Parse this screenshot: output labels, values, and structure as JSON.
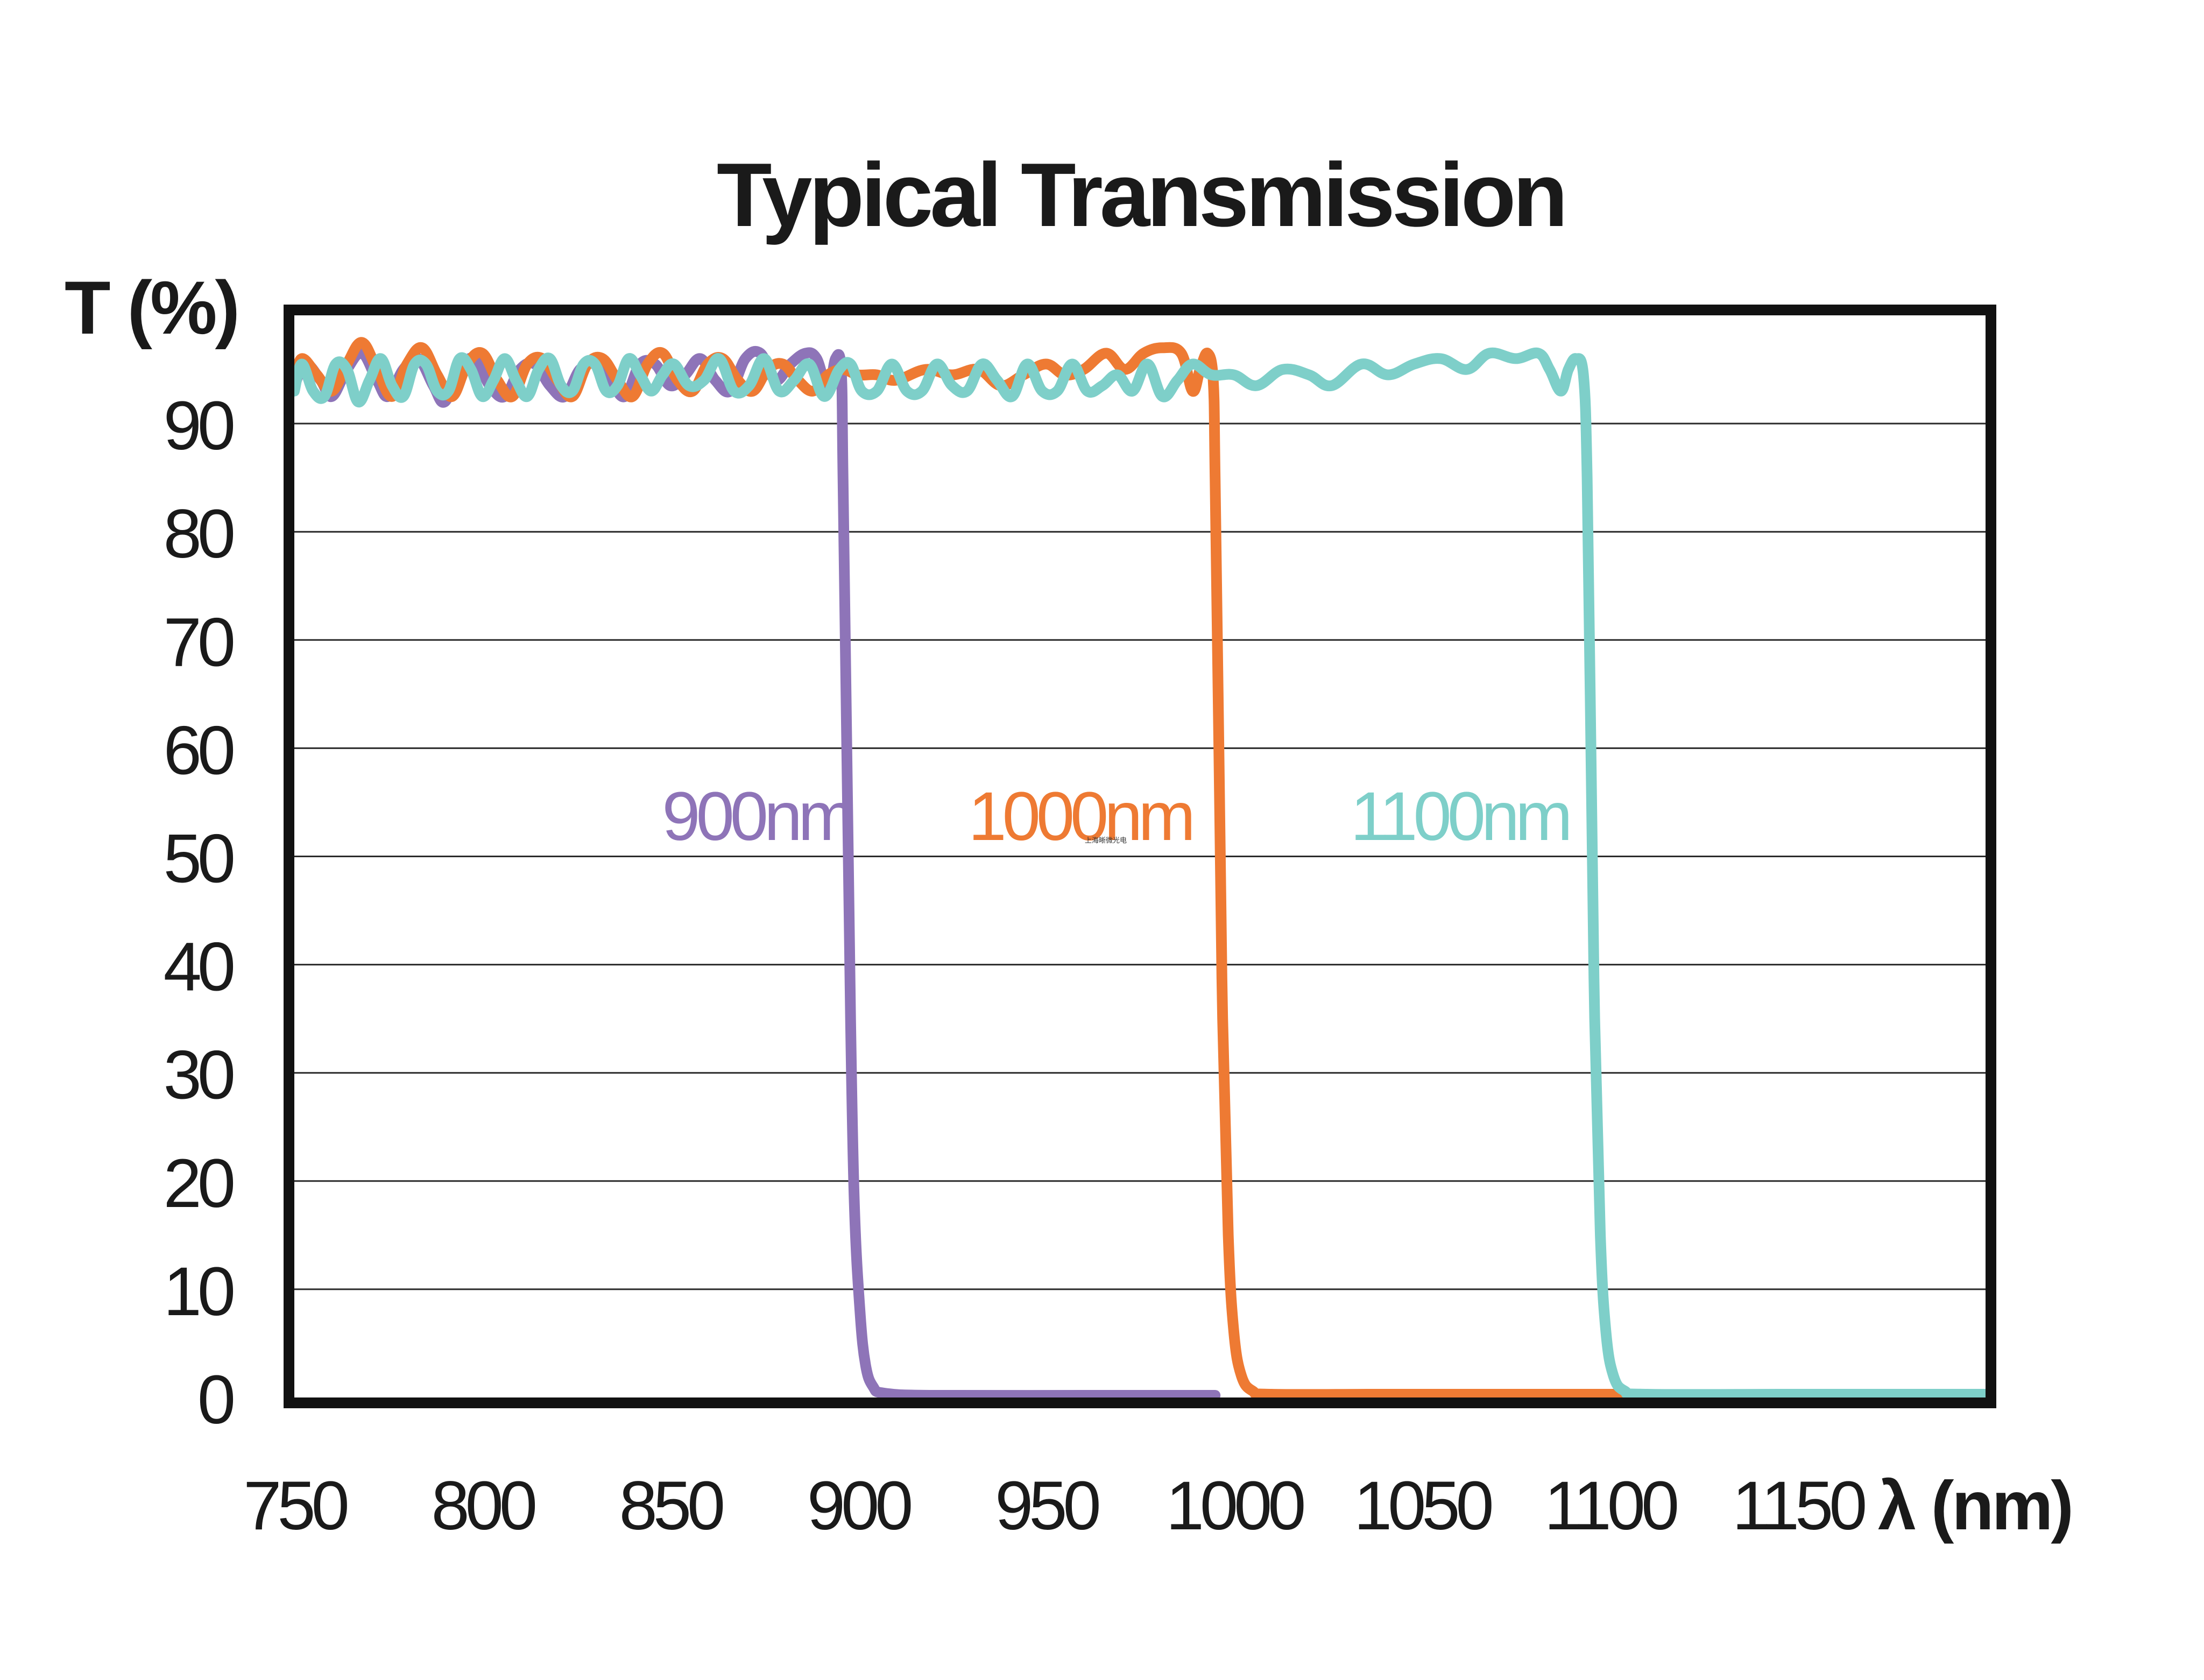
{
  "chart_data": {
    "type": "line",
    "title": "Typical Transmission",
    "ylabel": "T (%)",
    "xlabel": "λ (nm)",
    "xlim": [
      750,
      1200
    ],
    "ylim": [
      0,
      100
    ],
    "x_ticks": [
      750,
      800,
      850,
      900,
      950,
      1000,
      1050,
      1100,
      1150
    ],
    "y_ticks": [
      0,
      10,
      20,
      30,
      40,
      50,
      60,
      70,
      80,
      90
    ],
    "grid": "horizontal",
    "legend": "inline labels near each cut-off edge",
    "series": [
      {
        "name": "900nm",
        "label": "900nm",
        "color": "#8E74B8",
        "label_anchor": {
          "x": 873,
          "y": 54
        },
        "points": [
          [
            750,
            93.5
          ],
          [
            753,
            95.5
          ],
          [
            757,
            94
          ],
          [
            760,
            92.5
          ],
          [
            764,
            95
          ],
          [
            768,
            96.5
          ],
          [
            772,
            94
          ],
          [
            775,
            92.5
          ],
          [
            779,
            95
          ],
          [
            783,
            96
          ],
          [
            787,
            93.5
          ],
          [
            790,
            92
          ],
          [
            794,
            95
          ],
          [
            798,
            96
          ],
          [
            802,
            93.5
          ],
          [
            806,
            92.5
          ],
          [
            810,
            95
          ],
          [
            814,
            95.5
          ],
          [
            818,
            93.5
          ],
          [
            822,
            92.5
          ],
          [
            826,
            95
          ],
          [
            830,
            95.5
          ],
          [
            834,
            94
          ],
          [
            838,
            92.5
          ],
          [
            842,
            95.5
          ],
          [
            846,
            95.5
          ],
          [
            850,
            93.5
          ],
          [
            854,
            94.5
          ],
          [
            858,
            96
          ],
          [
            862,
            94
          ],
          [
            866,
            93
          ],
          [
            870,
            96
          ],
          [
            874,
            96.5
          ],
          [
            878,
            94
          ],
          [
            882,
            95.5
          ],
          [
            886,
            96.5
          ],
          [
            889,
            96
          ],
          [
            892,
            93
          ],
          [
            894,
            96
          ],
          [
            895.5,
            95
          ],
          [
            896,
            85
          ],
          [
            897,
            60
          ],
          [
            898,
            35
          ],
          [
            899,
            18
          ],
          [
            900.5,
            8
          ],
          [
            902,
            3
          ],
          [
            904,
            1
          ],
          [
            907,
            0.4
          ],
          [
            920,
            0.2
          ],
          [
            960,
            0.2
          ],
          [
            995,
            0.2
          ]
        ]
      },
      {
        "name": "1000nm",
        "label": "1000nm",
        "color": "#EE7A33",
        "label_anchor": {
          "x": 959,
          "y": 54
        },
        "points": [
          [
            750,
            94
          ],
          [
            752,
            96
          ],
          [
            756,
            94.5
          ],
          [
            760,
            93
          ],
          [
            764,
            95.5
          ],
          [
            768,
            97.5
          ],
          [
            772,
            95
          ],
          [
            776,
            92.5
          ],
          [
            780,
            95.5
          ],
          [
            784,
            97
          ],
          [
            788,
            94.5
          ],
          [
            792,
            92.5
          ],
          [
            796,
            95.5
          ],
          [
            800,
            96.5
          ],
          [
            804,
            94
          ],
          [
            808,
            92.5
          ],
          [
            812,
            95.5
          ],
          [
            816,
            96
          ],
          [
            820,
            94
          ],
          [
            824,
            92.5
          ],
          [
            828,
            95.5
          ],
          [
            832,
            96
          ],
          [
            836,
            94
          ],
          [
            840,
            92.5
          ],
          [
            844,
            95.5
          ],
          [
            848,
            96.5
          ],
          [
            852,
            94
          ],
          [
            856,
            93
          ],
          [
            860,
            95.5
          ],
          [
            864,
            96
          ],
          [
            868,
            94
          ],
          [
            872,
            93
          ],
          [
            876,
            95
          ],
          [
            880,
            95.5
          ],
          [
            884,
            94
          ],
          [
            888,
            93
          ],
          [
            892,
            94.5
          ],
          [
            896,
            95
          ],
          [
            900,
            94.5
          ],
          [
            905,
            94.5
          ],
          [
            910,
            94
          ],
          [
            918,
            95
          ],
          [
            925,
            94.5
          ],
          [
            932,
            95
          ],
          [
            938,
            93.5
          ],
          [
            944,
            94.5
          ],
          [
            950,
            95.5
          ],
          [
            955,
            94.5
          ],
          [
            960,
            95
          ],
          [
            966,
            96.5
          ],
          [
            971,
            95
          ],
          [
            976,
            96.5
          ],
          [
            981,
            97
          ],
          [
            986,
            96.5
          ],
          [
            989,
            93
          ],
          [
            991,
            95
          ],
          [
            993,
            96.5
          ],
          [
            994.5,
            94
          ],
          [
            995,
            85
          ],
          [
            996,
            60
          ],
          [
            997,
            35
          ],
          [
            998.5,
            15
          ],
          [
            1000,
            6
          ],
          [
            1002,
            2
          ],
          [
            1005,
            0.6
          ],
          [
            1010,
            0.3
          ],
          [
            1040,
            0.3
          ],
          [
            1080,
            0.3
          ],
          [
            1103,
            0.3
          ]
        ]
      },
      {
        "name": "1100nm",
        "label": "1100nm",
        "color": "#7ECFC9",
        "label_anchor": {
          "x": 1060,
          "y": 54
        },
        "points": [
          [
            750,
            93
          ],
          [
            752,
            95.5
          ],
          [
            755,
            93
          ],
          [
            758,
            92.5
          ],
          [
            761,
            95.5
          ],
          [
            764,
            95
          ],
          [
            767,
            92
          ],
          [
            770,
            94
          ],
          [
            773,
            96
          ],
          [
            776,
            93.5
          ],
          [
            779,
            92.5
          ],
          [
            782,
            95.5
          ],
          [
            785,
            95.5
          ],
          [
            788,
            93
          ],
          [
            791,
            93
          ],
          [
            794,
            96
          ],
          [
            797,
            95
          ],
          [
            800,
            92.5
          ],
          [
            803,
            94
          ],
          [
            806,
            96
          ],
          [
            809,
            94
          ],
          [
            812,
            92.5
          ],
          [
            815,
            95
          ],
          [
            818,
            96
          ],
          [
            821,
            93.5
          ],
          [
            824,
            93
          ],
          [
            827,
            95.5
          ],
          [
            830,
            95.5
          ],
          [
            833,
            93
          ],
          [
            836,
            93.5
          ],
          [
            839,
            96
          ],
          [
            842,
            94.5
          ],
          [
            845,
            93
          ],
          [
            848,
            94.5
          ],
          [
            851,
            95.5
          ],
          [
            855,
            93.5
          ],
          [
            859,
            94
          ],
          [
            863,
            96
          ],
          [
            867,
            93
          ],
          [
            871,
            93.5
          ],
          [
            875,
            96
          ],
          [
            879,
            93
          ],
          [
            883,
            94
          ],
          [
            887,
            95.5
          ],
          [
            891,
            92.5
          ],
          [
            895,
            95
          ],
          [
            898,
            95.5
          ],
          [
            901,
            93
          ],
          [
            905,
            93
          ],
          [
            909,
            95.5
          ],
          [
            913,
            93
          ],
          [
            917,
            93
          ],
          [
            921,
            95.5
          ],
          [
            925,
            93.5
          ],
          [
            929,
            93
          ],
          [
            933,
            95.5
          ],
          [
            937,
            94
          ],
          [
            941,
            92.5
          ],
          [
            945,
            95.5
          ],
          [
            949,
            93
          ],
          [
            953,
            93
          ],
          [
            957,
            95.5
          ],
          [
            961,
            93
          ],
          [
            965,
            93.5
          ],
          [
            969,
            94.5
          ],
          [
            973,
            93
          ],
          [
            977,
            95.5
          ],
          [
            981,
            92.5
          ],
          [
            985,
            94
          ],
          [
            989,
            95.5
          ],
          [
            994,
            94.5
          ],
          [
            1000,
            94.5
          ],
          [
            1006,
            93.5
          ],
          [
            1013,
            95
          ],
          [
            1020,
            94.5
          ],
          [
            1026,
            93.5
          ],
          [
            1034,
            95.5
          ],
          [
            1041,
            94.5
          ],
          [
            1048,
            95.5
          ],
          [
            1055,
            96
          ],
          [
            1062,
            95
          ],
          [
            1068,
            96.5
          ],
          [
            1075,
            96
          ],
          [
            1081,
            96.5
          ],
          [
            1084,
            95
          ],
          [
            1087,
            93
          ],
          [
            1089,
            95
          ],
          [
            1091,
            96
          ],
          [
            1093,
            94.5
          ],
          [
            1094,
            85
          ],
          [
            1095,
            60
          ],
          [
            1096,
            35
          ],
          [
            1097.5,
            15
          ],
          [
            1099,
            6
          ],
          [
            1101,
            2
          ],
          [
            1104,
            0.6
          ],
          [
            1110,
            0.3
          ],
          [
            1150,
            0.3
          ],
          [
            1200,
            0.3
          ]
        ]
      }
    ],
    "watermark": "上海晰微光电"
  }
}
